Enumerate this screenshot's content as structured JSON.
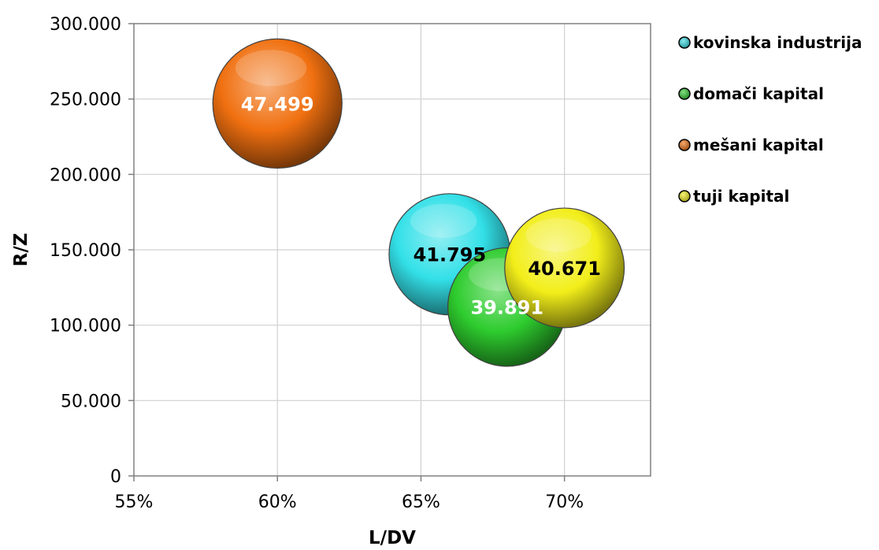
{
  "chart_data": {
    "type": "bubble",
    "title": "",
    "xlabel": "L/DV",
    "ylabel": "R/Z",
    "xlim": [
      0.55,
      0.73
    ],
    "ylim": [
      0,
      300000
    ],
    "x_ticks": [
      {
        "value": 0.55,
        "label": "55%"
      },
      {
        "value": 0.6,
        "label": "60%"
      },
      {
        "value": 0.65,
        "label": "65%"
      },
      {
        "value": 0.7,
        "label": "70%"
      }
    ],
    "y_ticks": [
      {
        "value": 0,
        "label": "0"
      },
      {
        "value": 50000,
        "label": "50.000"
      },
      {
        "value": 100000,
        "label": "100.000"
      },
      {
        "value": 150000,
        "label": "150.000"
      },
      {
        "value": 200000,
        "label": "200.000"
      },
      {
        "value": 250000,
        "label": "250.000"
      },
      {
        "value": 300000,
        "label": "300.000"
      }
    ],
    "grid": true,
    "legend_position": "right",
    "series": [
      {
        "name": "kovinska industrija",
        "x": 0.66,
        "y": 147000,
        "size": 41795,
        "label": "41.795",
        "color": "#33e0e8",
        "label_color": "#000000"
      },
      {
        "name": "domači kapital",
        "x": 0.68,
        "y": 112000,
        "size": 39891,
        "label": "39.891",
        "color": "#2ecc2e",
        "label_color": "#ffffff"
      },
      {
        "name": "mešani kapital",
        "x": 0.6,
        "y": 247000,
        "size": 47499,
        "label": "47.499",
        "color": "#f07010",
        "label_color": "#ffffff"
      },
      {
        "name": "tuji kapital",
        "x": 0.7,
        "y": 138000,
        "size": 40671,
        "label": "40.671",
        "color": "#f2ee1a",
        "label_color": "#000000"
      }
    ]
  }
}
